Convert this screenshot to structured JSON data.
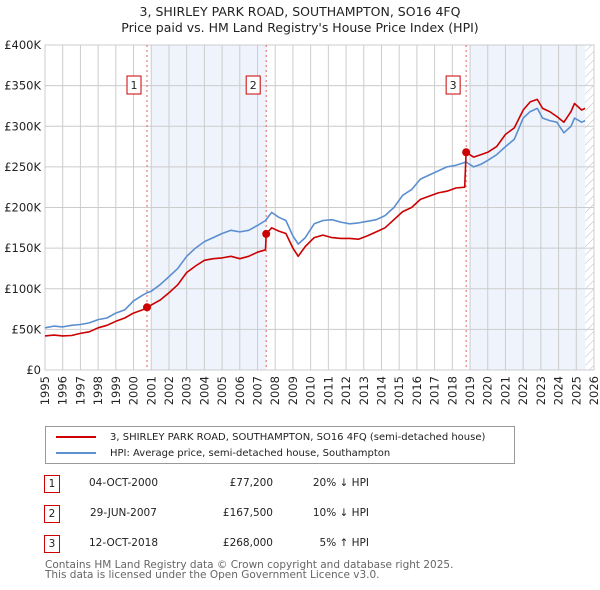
{
  "chart_data": {
    "type": "line",
    "title": "3, SHIRLEY PARK ROAD, SOUTHAMPTON, SO16 4FQ",
    "subtitle": "Price paid vs. HM Land Registry's House Price Index (HPI)",
    "xlabel": "",
    "ylabel": "",
    "xlim": [
      1995,
      2026
    ],
    "ylim": [
      0,
      400000
    ],
    "grid": true,
    "x_ticks": [
      "1995",
      "1996",
      "1997",
      "1998",
      "1999",
      "2000",
      "2001",
      "2002",
      "2003",
      "2004",
      "2005",
      "2006",
      "2007",
      "2008",
      "2009",
      "2010",
      "2011",
      "2012",
      "2013",
      "2014",
      "2015",
      "2016",
      "2017",
      "2018",
      "2019",
      "2020",
      "2021",
      "2022",
      "2023",
      "2024",
      "2025",
      "2026"
    ],
    "y_ticks": [
      "£0",
      "£50K",
      "£100K",
      "£150K",
      "£200K",
      "£250K",
      "£300K",
      "£350K",
      "£400K"
    ],
    "y_tick_values": [
      0,
      50000,
      100000,
      150000,
      200000,
      250000,
      300000,
      350000,
      400000
    ],
    "series": [
      {
        "name": "3, SHIRLEY PARK ROAD, SOUTHAMPTON, SO16 4FQ (semi-detached house)",
        "color": "#cc0000",
        "x": [
          1995,
          1995.5,
          1996,
          1996.5,
          1997,
          1997.5,
          1998,
          1998.5,
          1999,
          1999.5,
          2000,
          2000.5,
          2000.76,
          2001,
          2001.5,
          2002,
          2002.5,
          2003,
          2003.5,
          2004,
          2004.5,
          2005,
          2005.5,
          2006,
          2006.5,
          2007,
          2007.45,
          2007.49,
          2007.8,
          2008.2,
          2008.6,
          2009.0,
          2009.3,
          2009.7,
          2010.2,
          2010.7,
          2011.2,
          2011.7,
          2012.2,
          2012.7,
          2013.2,
          2013.7,
          2014.2,
          2014.7,
          2015.2,
          2015.7,
          2016.2,
          2016.7,
          2017.2,
          2017.7,
          2018.2,
          2018.7,
          2018.78,
          2019.2,
          2019.6,
          2020.0,
          2020.5,
          2021.0,
          2021.5,
          2022.0,
          2022.4,
          2022.8,
          2023.1,
          2023.5,
          2023.9,
          2024.3,
          2024.7,
          2024.9,
          2025.3,
          2025.5
        ],
        "values": [
          42000,
          43000,
          42000,
          42500,
          45000,
          47000,
          52000,
          55000,
          60000,
          64000,
          70000,
          74000,
          77200,
          80000,
          86000,
          95000,
          105000,
          120000,
          128000,
          135000,
          137000,
          138000,
          140000,
          137000,
          140000,
          145000,
          148000,
          167500,
          175000,
          171000,
          168000,
          150000,
          140000,
          152000,
          163000,
          166000,
          163000,
          162000,
          162000,
          161000,
          165000,
          170000,
          175000,
          185000,
          195000,
          200000,
          210000,
          214000,
          218000,
          220000,
          224000,
          225000,
          268000,
          262000,
          265000,
          268000,
          275000,
          290000,
          298000,
          320000,
          330000,
          333000,
          322000,
          318000,
          312000,
          305000,
          318000,
          328000,
          320000,
          322000
        ]
      },
      {
        "name": "HPI: Average price, semi-detached house, Southampton",
        "color": "#5b8fd0",
        "x": [
          1995,
          1995.5,
          1996,
          1996.5,
          1997,
          1997.5,
          1998,
          1998.5,
          1999,
          1999.5,
          2000,
          2000.5,
          2000.76,
          2001,
          2001.5,
          2002,
          2002.5,
          2003,
          2003.5,
          2004,
          2004.5,
          2005,
          2005.5,
          2006,
          2006.5,
          2007,
          2007.45,
          2007.8,
          2008.2,
          2008.6,
          2009.0,
          2009.3,
          2009.7,
          2010.2,
          2010.7,
          2011.2,
          2011.7,
          2012.2,
          2012.7,
          2013.2,
          2013.7,
          2014.2,
          2014.7,
          2015.2,
          2015.7,
          2016.2,
          2016.7,
          2017.2,
          2017.7,
          2018.2,
          2018.78,
          2019.2,
          2019.6,
          2020.0,
          2020.5,
          2021.0,
          2021.5,
          2022.0,
          2022.4,
          2022.8,
          2023.1,
          2023.5,
          2023.9,
          2024.3,
          2024.7,
          2024.9,
          2025.3,
          2025.5
        ],
        "values": [
          52000,
          54000,
          53000,
          55000,
          56000,
          58000,
          62000,
          64000,
          70000,
          74000,
          85000,
          92000,
          95000,
          97000,
          105000,
          115000,
          125000,
          140000,
          150000,
          158000,
          163000,
          168000,
          172000,
          170000,
          172000,
          178000,
          184000,
          194000,
          188000,
          184000,
          165000,
          155000,
          163000,
          180000,
          184000,
          185000,
          182000,
          180000,
          181000,
          183000,
          185000,
          190000,
          200000,
          215000,
          222000,
          235000,
          240000,
          245000,
          250000,
          252000,
          256000,
          250000,
          253000,
          258000,
          265000,
          275000,
          284000,
          310000,
          318000,
          322000,
          310000,
          307000,
          305000,
          292000,
          300000,
          310000,
          305000,
          307000
        ]
      }
    ],
    "sales": [
      {
        "label": "1",
        "x": 2000.76,
        "value": 77200
      },
      {
        "label": "2",
        "x": 2007.49,
        "value": 167500
      },
      {
        "label": "3",
        "x": 2018.78,
        "value": 268000
      }
    ],
    "shaded_spans": [
      [
        2001,
        2007.49
      ],
      [
        2019,
        2025.5
      ]
    ],
    "hatched_from": 2025.5,
    "legend_position": "bottom"
  },
  "legend": {
    "property_label": "3, SHIRLEY PARK ROAD, SOUTHAMPTON, SO16 4FQ (semi-detached house)",
    "hpi_label": "HPI: Average price, semi-detached house, Southampton"
  },
  "transactions": [
    {
      "num": "1",
      "date": "04-OCT-2000",
      "price": "£77,200",
      "hpi": "20% ↓ HPI"
    },
    {
      "num": "2",
      "date": "29-JUN-2007",
      "price": "£167,500",
      "hpi": "10% ↓ HPI"
    },
    {
      "num": "3",
      "date": "12-OCT-2018",
      "price": "£268,000",
      "hpi": "5% ↑ HPI"
    }
  ],
  "footer": {
    "line1": "Contains HM Land Registry data © Crown copyright and database right 2025.",
    "line2": "This data is licensed under the Open Government Licence v3.0."
  }
}
